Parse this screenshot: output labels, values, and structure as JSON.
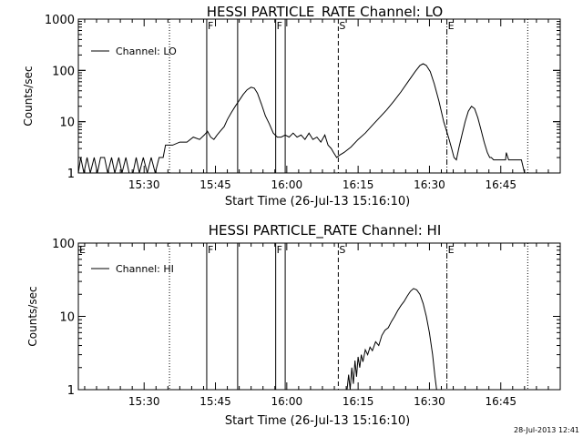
{
  "footer_timestamp": "28-Jul-2013 12:41",
  "chart_data": [
    {
      "type": "line",
      "title": "HESSI PARTICLE_RATE Channel: LO",
      "xlabel": "Start Time (26-Jul-13 15:16:10)",
      "ylabel": "Counts/sec",
      "yscale": "log",
      "xlim": [
        "15:16:10",
        "16:57:30"
      ],
      "ylim": [
        1,
        1000
      ],
      "x_ticks": [
        "15:30",
        "15:45",
        "16:00",
        "16:15",
        "16:30",
        "16:45"
      ],
      "y_ticks": [
        "1",
        "10",
        "100",
        "1000"
      ],
      "legend": {
        "label": "Channel: LO",
        "placement": "top-left"
      },
      "series": [
        {
          "name": "Channel: LO",
          "points": [
            [
              "15:16:10",
              1
            ],
            [
              "15:16:40",
              2
            ],
            [
              "15:17:20",
              1
            ],
            [
              "15:18:00",
              2
            ],
            [
              "15:18:40",
              1
            ],
            [
              "15:19:30",
              2
            ],
            [
              "15:20:10",
              1
            ],
            [
              "15:20:50",
              2
            ],
            [
              "15:21:40",
              2
            ],
            [
              "15:22:20",
              1
            ],
            [
              "15:23:10",
              2
            ],
            [
              "15:23:50",
              1
            ],
            [
              "15:24:40",
              2
            ],
            [
              "15:25:20",
              1
            ],
            [
              "15:26:10",
              2
            ],
            [
              "15:26:50",
              1
            ],
            [
              "15:27:40",
              1
            ],
            [
              "15:28:20",
              2
            ],
            [
              "15:29:00",
              1
            ],
            [
              "15:29:50",
              2
            ],
            [
              "15:30:40",
              1
            ],
            [
              "15:31:30",
              2
            ],
            [
              "15:32:20",
              1
            ],
            [
              "15:33:10",
              2
            ],
            [
              "15:34:00",
              2
            ],
            [
              "15:34:30",
              3.5
            ],
            [
              "15:36:00",
              3.5
            ],
            [
              "15:37:30",
              4
            ],
            [
              "15:39:00",
              4
            ],
            [
              "15:40:20",
              5
            ],
            [
              "15:41:40",
              4.5
            ],
            [
              "15:42:40",
              5.5
            ],
            [
              "15:43:20",
              6.5
            ],
            [
              "15:44:00",
              5
            ],
            [
              "15:44:40",
              4.5
            ],
            [
              "15:45:20",
              5.5
            ],
            [
              "15:46:00",
              6.5
            ],
            [
              "15:46:50",
              8
            ],
            [
              "15:47:30",
              11
            ],
            [
              "15:48:20",
              15
            ],
            [
              "15:49:10",
              20
            ],
            [
              "15:50:00",
              26
            ],
            [
              "15:50:50",
              34
            ],
            [
              "15:51:40",
              42
            ],
            [
              "15:52:30",
              47
            ],
            [
              "15:53:10",
              45
            ],
            [
              "15:53:50",
              36
            ],
            [
              "15:54:40",
              22
            ],
            [
              "15:55:30",
              13
            ],
            [
              "15:56:20",
              9
            ],
            [
              "15:57:10",
              6
            ],
            [
              "15:58:00",
              5
            ],
            [
              "15:58:50",
              5
            ],
            [
              "15:59:40",
              5.5
            ],
            [
              "16:00:30",
              5
            ],
            [
              "16:01:20",
              6
            ],
            [
              "16:02:10",
              5
            ],
            [
              "16:03:00",
              5.5
            ],
            [
              "16:03:50",
              4.5
            ],
            [
              "16:04:40",
              6
            ],
            [
              "16:05:30",
              4.5
            ],
            [
              "16:06:20",
              5
            ],
            [
              "16:07:10",
              4
            ],
            [
              "16:08:00",
              5.5
            ],
            [
              "16:08:40",
              3.5
            ],
            [
              "16:09:20",
              3
            ],
            [
              "16:09:50",
              2.5
            ],
            [
              "16:10:30",
              2
            ],
            [
              "16:11:00",
              2.2
            ],
            [
              "16:12:00",
              2.5
            ],
            [
              "16:13:30",
              3.2
            ],
            [
              "16:15:00",
              4.5
            ],
            [
              "16:16:30",
              6
            ],
            [
              "16:18:00",
              8.5
            ],
            [
              "16:19:30",
              12
            ],
            [
              "16:21:00",
              17
            ],
            [
              "16:22:30",
              25
            ],
            [
              "16:24:00",
              38
            ],
            [
              "16:25:30",
              60
            ],
            [
              "16:27:00",
              95
            ],
            [
              "16:28:00",
              125
            ],
            [
              "16:28:40",
              135
            ],
            [
              "16:29:20",
              125
            ],
            [
              "16:30:10",
              95
            ],
            [
              "16:31:00",
              55
            ],
            [
              "16:32:00",
              25
            ],
            [
              "16:33:00",
              10
            ],
            [
              "16:34:00",
              5
            ],
            [
              "16:34:40",
              3
            ],
            [
              "16:35:10",
              2
            ],
            [
              "16:35:40",
              1.8
            ],
            [
              "16:36:10",
              3
            ],
            [
              "16:36:50",
              5.5
            ],
            [
              "16:37:30",
              10
            ],
            [
              "16:38:10",
              16
            ],
            [
              "16:38:50",
              20
            ],
            [
              "16:39:30",
              18
            ],
            [
              "16:40:10",
              12
            ],
            [
              "16:40:50",
              7
            ],
            [
              "16:41:30",
              4
            ],
            [
              "16:42:10",
              2.5
            ],
            [
              "16:42:40",
              2
            ],
            [
              "16:43:00",
              2
            ],
            [
              "16:43:30",
              1.8
            ],
            [
              "16:44:00",
              1.8
            ],
            [
              "16:45:00",
              1.8
            ],
            [
              "16:46:00",
              1.8
            ],
            [
              "16:46:10",
              2.5
            ],
            [
              "16:46:40",
              1.8
            ],
            [
              "16:48:00",
              1.8
            ],
            [
              "16:49:20",
              1.8
            ],
            [
              "16:50:00",
              1
            ]
          ]
        }
      ],
      "markers": [
        {
          "label": "",
          "time": "15:35:20",
          "style": "dotted"
        },
        {
          "label": "F",
          "time": "15:43:10",
          "style": "solid"
        },
        {
          "label": "",
          "time": "15:49:40",
          "style": "solid"
        },
        {
          "label": "F",
          "time": "15:57:40",
          "style": "solid"
        },
        {
          "label": "",
          "time": "15:59:40",
          "style": "solid"
        },
        {
          "label": "S",
          "time": "16:10:50",
          "style": "dashed"
        },
        {
          "label": "E",
          "time": "16:33:40",
          "style": "dash-dot"
        },
        {
          "label": "",
          "time": "16:50:40",
          "style": "dotted"
        }
      ]
    },
    {
      "type": "line",
      "title": "HESSI PARTICLE_RATE Channel: HI",
      "xlabel": "Start Time (26-Jul-13 15:16:10)",
      "ylabel": "Counts/sec",
      "yscale": "log",
      "xlim": [
        "15:16:10",
        "16:57:30"
      ],
      "ylim": [
        1,
        100
      ],
      "x_ticks": [
        "15:30",
        "15:45",
        "16:00",
        "16:15",
        "16:30",
        "16:45"
      ],
      "y_ticks": [
        "1",
        "10",
        "100"
      ],
      "legend": {
        "label": "Channel: HI",
        "placement": "top-left"
      },
      "series": [
        {
          "name": "Channel: HI",
          "points": [
            [
              "16:12:40",
              1
            ],
            [
              "16:13:00",
              1.6
            ],
            [
              "16:13:20",
              1
            ],
            [
              "16:13:40",
              2
            ],
            [
              "16:14:00",
              1.2
            ],
            [
              "16:14:20",
              2.5
            ],
            [
              "16:14:40",
              1.5
            ],
            [
              "16:15:00",
              2.8
            ],
            [
              "16:15:20",
              2
            ],
            [
              "16:15:40",
              3
            ],
            [
              "16:16:00",
              2.4
            ],
            [
              "16:16:30",
              3.5
            ],
            [
              "16:17:00",
              3
            ],
            [
              "16:17:30",
              3.8
            ],
            [
              "16:18:00",
              3.4
            ],
            [
              "16:18:40",
              4.5
            ],
            [
              "16:19:20",
              4
            ],
            [
              "16:20:00",
              5.5
            ],
            [
              "16:20:40",
              6.5
            ],
            [
              "16:21:20",
              7
            ],
            [
              "16:22:00",
              8.5
            ],
            [
              "16:22:40",
              10
            ],
            [
              "16:23:20",
              12
            ],
            [
              "16:24:00",
              14
            ],
            [
              "16:24:40",
              16
            ],
            [
              "16:25:20",
              19
            ],
            [
              "16:26:00",
              22
            ],
            [
              "16:26:40",
              24
            ],
            [
              "16:27:20",
              23
            ],
            [
              "16:28:00",
              20
            ],
            [
              "16:28:40",
              15
            ],
            [
              "16:29:20",
              10
            ],
            [
              "16:30:00",
              6
            ],
            [
              "16:30:40",
              3
            ],
            [
              "16:31:10",
              1.5
            ],
            [
              "16:31:30",
              1
            ]
          ]
        }
      ],
      "markers": [
        {
          "label": "E",
          "time": "15:16:10",
          "style": "none"
        },
        {
          "label": "",
          "time": "15:35:20",
          "style": "dotted"
        },
        {
          "label": "F",
          "time": "15:43:10",
          "style": "solid"
        },
        {
          "label": "",
          "time": "15:49:40",
          "style": "solid"
        },
        {
          "label": "F",
          "time": "15:57:40",
          "style": "solid"
        },
        {
          "label": "",
          "time": "15:59:40",
          "style": "solid"
        },
        {
          "label": "S",
          "time": "16:10:50",
          "style": "dashed"
        },
        {
          "label": "E",
          "time": "16:33:40",
          "style": "dash-dot"
        },
        {
          "label": "",
          "time": "16:50:40",
          "style": "dotted"
        }
      ]
    }
  ]
}
